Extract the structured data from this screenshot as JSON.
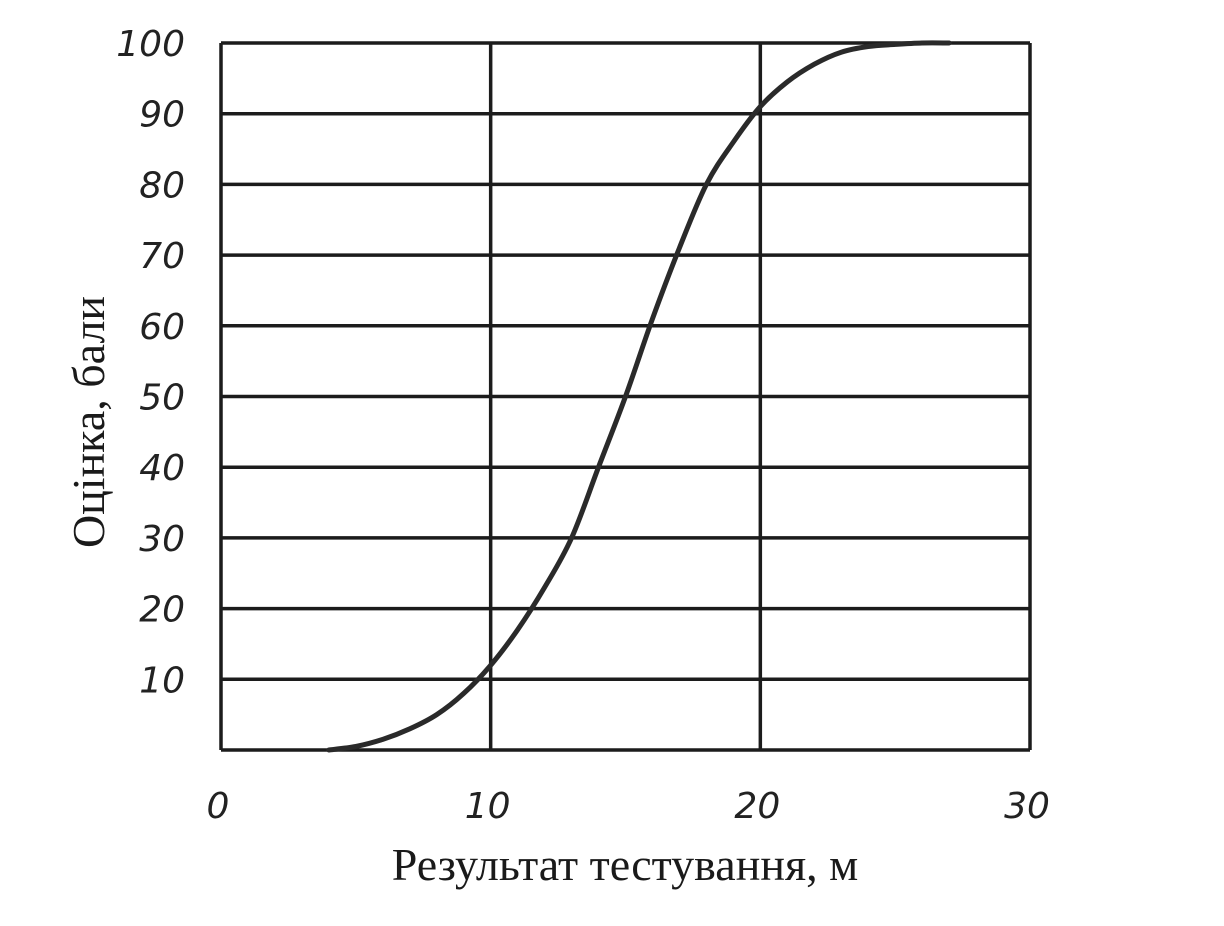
{
  "chart_data": {
    "type": "line",
    "xlabel": "Результат тестування, м",
    "ylabel": "Оцінка, бали",
    "xlim": [
      0,
      30
    ],
    "ylim": [
      0,
      100
    ],
    "x_ticks": [
      "0",
      "10",
      "20",
      "30"
    ],
    "y_ticks": [
      "10",
      "20",
      "30",
      "40",
      "50",
      "60",
      "70",
      "80",
      "90",
      "100"
    ],
    "grid": true,
    "series": [
      {
        "x": [
          4,
          5,
          6,
          7,
          8,
          9,
          10,
          11,
          12,
          13,
          14,
          15,
          16,
          17,
          18,
          19,
          20,
          21,
          22,
          23,
          24,
          25,
          26,
          27
        ],
        "y": [
          0,
          0.5,
          1.5,
          3,
          5,
          8,
          12,
          17,
          23,
          30,
          40,
          50,
          61,
          71,
          80,
          86,
          91,
          94.5,
          97,
          98.7,
          99.5,
          99.8,
          100,
          100
        ]
      }
    ]
  }
}
